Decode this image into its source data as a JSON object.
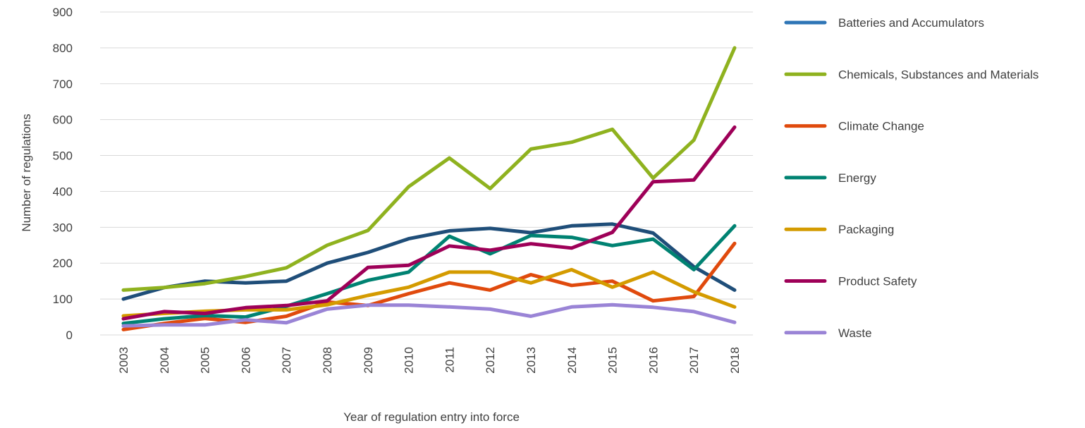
{
  "chart_data": {
    "type": "line",
    "title": "",
    "xlabel": "Year of regulation entry into force",
    "ylabel": "Number of regulations",
    "ylim": [
      0,
      900
    ],
    "yticks": [
      "0",
      "100",
      "200",
      "300",
      "400",
      "500",
      "600",
      "700",
      "800",
      "900"
    ],
    "grid": true,
    "legend_position": "right",
    "categories": [
      "2003",
      "2004",
      "2005",
      "2006",
      "2007",
      "2008",
      "2009",
      "2010",
      "2011",
      "2012",
      "2013",
      "2014",
      "2015",
      "2016",
      "2017",
      "2018"
    ],
    "series": [
      {
        "name": "Batteries and Accumulators",
        "color": "#1f4e79",
        "legend_color": "#2e75b6",
        "values": [
          100,
          132,
          150,
          145,
          150,
          200,
          230,
          268,
          290,
          297,
          285,
          304,
          309,
          284,
          190,
          125
        ]
      },
      {
        "name": "Chemicals, Substances and Materials",
        "color": "#8fb21f",
        "values": [
          125,
          132,
          143,
          163,
          187,
          250,
          291,
          413,
          493,
          408,
          518,
          537,
          573,
          437,
          543,
          800
        ]
      },
      {
        "name": "Climate Change",
        "color": "#e04a0d",
        "values": [
          15,
          32,
          46,
          35,
          52,
          92,
          82,
          115,
          145,
          125,
          168,
          138,
          150,
          95,
          107,
          255
        ]
      },
      {
        "name": "Energy",
        "color": "#008272",
        "values": [
          32,
          45,
          54,
          50,
          80,
          115,
          152,
          175,
          275,
          226,
          277,
          272,
          249,
          267,
          182,
          304
        ]
      },
      {
        "name": "Packaging",
        "color": "#d49b00",
        "values": [
          53,
          60,
          66,
          70,
          70,
          84,
          110,
          133,
          175,
          175,
          145,
          182,
          133,
          175,
          120,
          78
        ]
      },
      {
        "name": "Product Safety",
        "color": "#9e0058",
        "values": [
          45,
          65,
          60,
          76,
          82,
          95,
          188,
          194,
          248,
          236,
          254,
          242,
          286,
          427,
          432,
          579
        ]
      },
      {
        "name": "Waste",
        "color": "#9a84d6",
        "values": [
          25,
          28,
          28,
          42,
          34,
          72,
          83,
          83,
          78,
          72,
          52,
          78,
          84,
          77,
          65,
          35
        ]
      }
    ]
  }
}
